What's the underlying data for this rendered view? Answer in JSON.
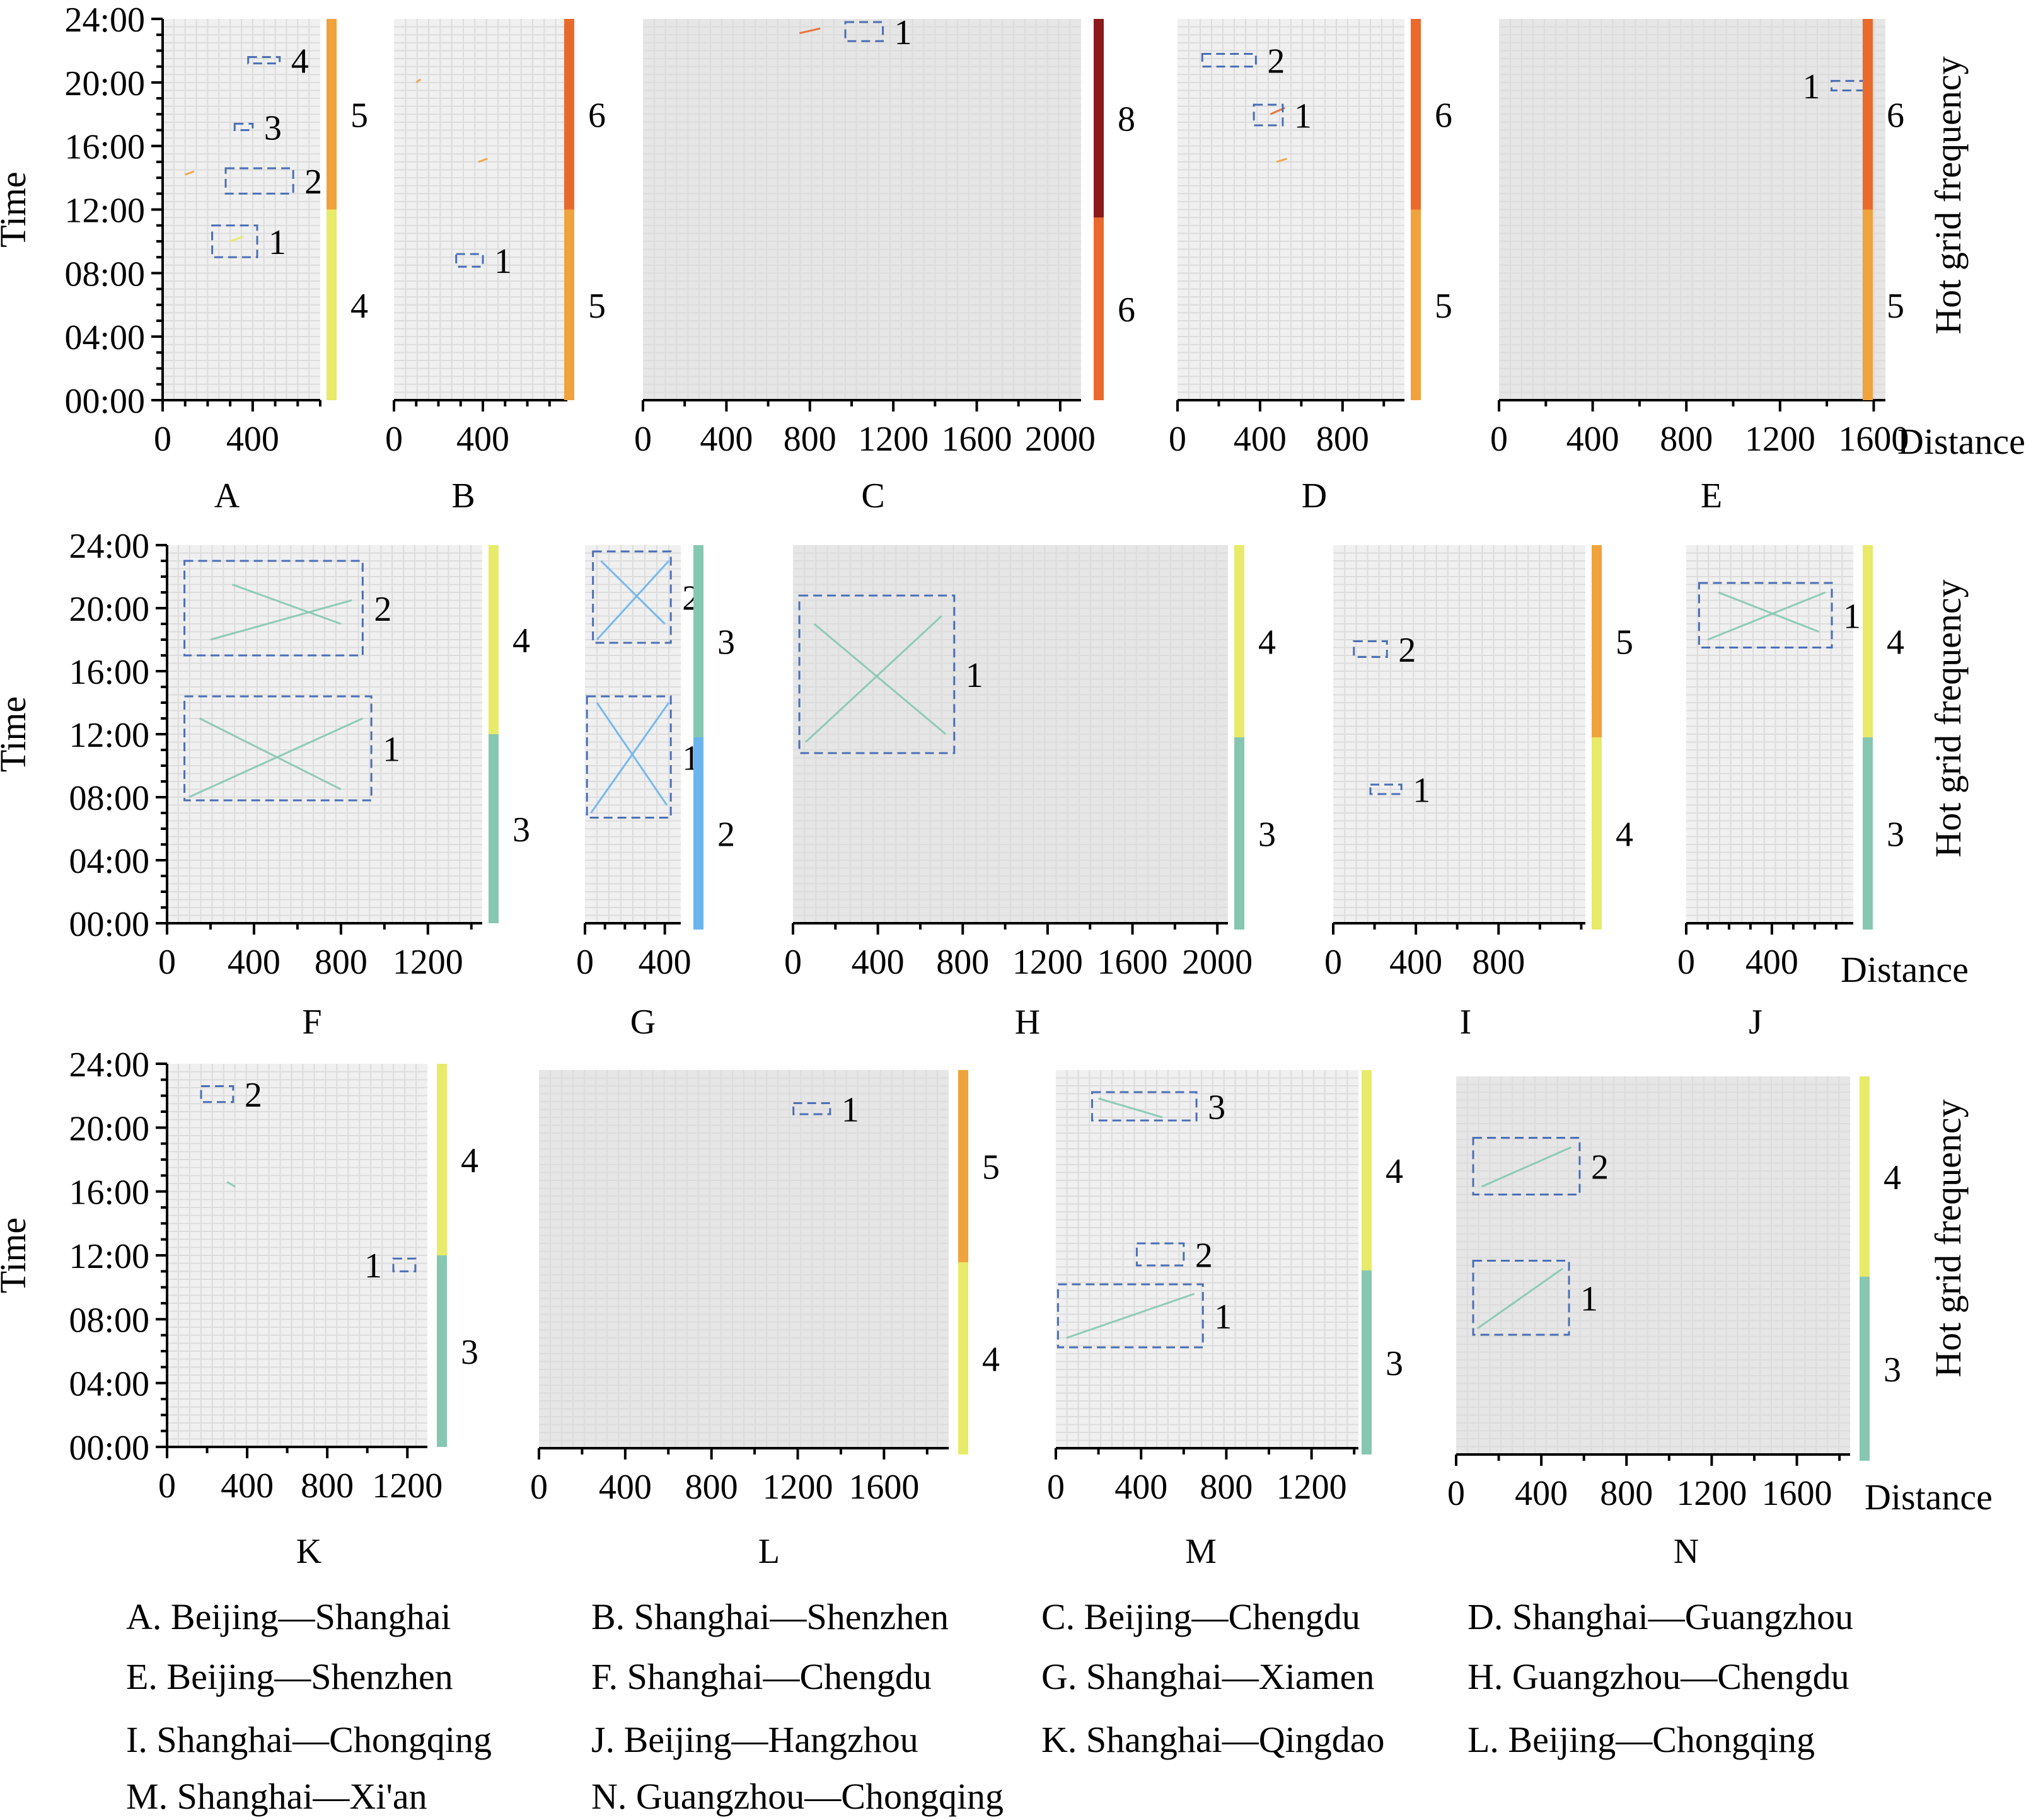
{
  "chart_data": {
    "type": "scatter",
    "axis_labels": {
      "y": "Time",
      "x": "Distance",
      "colorbar": "Hot grid frequency"
    },
    "time_ticks": [
      "00:00",
      "04:00",
      "08:00",
      "12:00",
      "16:00",
      "20:00",
      "24:00"
    ],
    "colors": {
      "freq2": "#6cb4ee",
      "freq3": "#86c7b2",
      "freq4": "#e8ea6a",
      "freq5": "#f0a23c",
      "freq6": "#e96a2c",
      "freq8": "#8b1a1a",
      "box": "#4b6fb5"
    },
    "panels": [
      {
        "id": "A",
        "route": "A. Beijing—Shanghai",
        "xlim": [
          0,
          700
        ],
        "xticks": [
          0,
          400
        ],
        "minor": 100,
        "colorbar": [
          {
            "level": "4",
            "from": 0,
            "to": 12
          },
          {
            "level": "5",
            "from": 12,
            "to": 24
          }
        ],
        "boxes": [
          {
            "label": "1",
            "t0": 9,
            "t1": 11,
            "d0": 220,
            "d1": 420
          },
          {
            "label": "2",
            "t0": 13,
            "t1": 14.6,
            "d0": 280,
            "d1": 580
          },
          {
            "label": "3",
            "t0": 17,
            "t1": 17.4,
            "d0": 320,
            "d1": 400
          },
          {
            "label": "4",
            "t0": 21.2,
            "t1": 21.6,
            "d0": 380,
            "d1": 520
          }
        ],
        "tracks": [
          {
            "t0": 14.2,
            "t1": 14.4,
            "d0": 100,
            "d1": 140,
            "level": "5"
          },
          {
            "t0": 10,
            "t1": 10.3,
            "d0": 300,
            "d1": 360,
            "level": "4"
          }
        ]
      },
      {
        "id": "B",
        "route": "B. Shanghai—Shenzhen",
        "xlim": [
          0,
          780
        ],
        "xticks": [
          0,
          400
        ],
        "minor": 100,
        "colorbar": [
          {
            "level": "5",
            "from": 0,
            "to": 12
          },
          {
            "level": "6",
            "from": 12,
            "to": 24
          }
        ],
        "boxes": [
          {
            "label": "1",
            "t0": 8.4,
            "t1": 9.2,
            "d0": 280,
            "d1": 400
          }
        ],
        "tracks": [
          {
            "t0": 15,
            "t1": 15.2,
            "d0": 380,
            "d1": 420,
            "level": "5"
          },
          {
            "t0": 20,
            "t1": 20.2,
            "d0": 100,
            "d1": 120,
            "level": "5"
          }
        ]
      },
      {
        "id": "C",
        "route": "C. Beijing—Chengdu",
        "xlim": [
          0,
          2100
        ],
        "xticks": [
          0,
          400,
          800,
          1200,
          1600,
          2000
        ],
        "minor": 200,
        "colorbar": [
          {
            "level": "6",
            "from": 0,
            "to": 11.5
          },
          {
            "level": "8",
            "from": 11.5,
            "to": 24
          }
        ],
        "boxes": [
          {
            "label": "1",
            "t0": 22.6,
            "t1": 23.8,
            "d0": 970,
            "d1": 1150
          }
        ],
        "tracks": [
          {
            "t0": 23.1,
            "t1": 23.4,
            "d0": 750,
            "d1": 850,
            "level": "6"
          }
        ]
      },
      {
        "id": "D",
        "route": "D. Shanghai—Guangzhou",
        "xlim": [
          0,
          1100
        ],
        "xticks": [
          0,
          400,
          800
        ],
        "minor": 200,
        "colorbar": [
          {
            "level": "5",
            "from": 0,
            "to": 12
          },
          {
            "level": "6",
            "from": 12,
            "to": 24
          }
        ],
        "boxes": [
          {
            "label": "2",
            "t0": 21,
            "t1": 21.8,
            "d0": 120,
            "d1": 380
          },
          {
            "label": "1",
            "t0": 17.3,
            "t1": 18.6,
            "d0": 370,
            "d1": 510
          }
        ],
        "tracks": [
          {
            "t0": 18,
            "t1": 18.4,
            "d0": 450,
            "d1": 520,
            "level": "6"
          },
          {
            "t0": 15,
            "t1": 15.2,
            "d0": 480,
            "d1": 530,
            "level": "5"
          }
        ]
      },
      {
        "id": "E",
        "route": "E. Beijing—Shenzhen",
        "xlim": [
          0,
          1650
        ],
        "xticks": [
          0,
          400,
          800,
          1200,
          1600
        ],
        "minor": 200,
        "colorbar": [
          {
            "level": "5",
            "from": 0,
            "to": 12
          },
          {
            "level": "6",
            "from": 12,
            "to": 24
          }
        ],
        "boxes": [
          {
            "label": "1",
            "t0": 19.5,
            "t1": 20.1,
            "d0": 1420,
            "d1": 1560
          }
        ],
        "tracks": []
      },
      {
        "id": "F",
        "route": "F. Shanghai—Chengdu",
        "xlim": [
          0,
          1450
        ],
        "xticks": [
          0,
          400,
          800,
          1200
        ],
        "minor": 200,
        "colorbar": [
          {
            "level": "3",
            "from": 0,
            "to": 12
          },
          {
            "level": "4",
            "from": 12,
            "to": 24
          }
        ],
        "boxes": [
          {
            "label": "1",
            "t0": 7.8,
            "t1": 14.4,
            "d0": 80,
            "d1": 940
          },
          {
            "label": "2",
            "t0": 17,
            "t1": 23,
            "d0": 80,
            "d1": 900
          }
        ],
        "tracks": [
          {
            "t0": 8,
            "t1": 13,
            "d0": 100,
            "d1": 900,
            "level": "3"
          },
          {
            "t0": 13,
            "t1": 8.5,
            "d0": 150,
            "d1": 800,
            "level": "3"
          },
          {
            "t0": 18,
            "t1": 20.5,
            "d0": 200,
            "d1": 850,
            "level": "3"
          },
          {
            "t0": 21.5,
            "t1": 19,
            "d0": 300,
            "d1": 800,
            "level": "3"
          }
        ]
      },
      {
        "id": "G",
        "route": "G. Shanghai—Xiamen",
        "xlim": [
          0,
          480
        ],
        "xticks": [
          0,
          400
        ],
        "minor": 100,
        "colorbar": [
          {
            "level": "2",
            "from": 0,
            "to": 12
          },
          {
            "level": "3",
            "from": 12,
            "to": 24
          }
        ],
        "boxes": [
          {
            "label": "1",
            "t0": 6.7,
            "t1": 14.4,
            "d0": 10,
            "d1": 430
          },
          {
            "label": "2",
            "t0": 17.8,
            "t1": 23.6,
            "d0": 40,
            "d1": 430
          }
        ],
        "tracks": [
          {
            "t0": 7,
            "t1": 14,
            "d0": 30,
            "d1": 420,
            "level": "2"
          },
          {
            "t0": 14,
            "t1": 7.5,
            "d0": 60,
            "d1": 410,
            "level": "2"
          },
          {
            "t0": 18,
            "t1": 23,
            "d0": 60,
            "d1": 420,
            "level": "2"
          },
          {
            "t0": 23,
            "t1": 19,
            "d0": 80,
            "d1": 400,
            "level": "2"
          }
        ]
      },
      {
        "id": "H",
        "route": "H. Guangzhou—Chengdu",
        "xlim": [
          0,
          2050
        ],
        "xticks": [
          0,
          400,
          800,
          1200,
          1600,
          2000
        ],
        "minor": 200,
        "colorbar": [
          {
            "level": "3",
            "from": 0,
            "to": 12
          },
          {
            "level": "4",
            "from": 12,
            "to": 24
          }
        ],
        "boxes": [
          {
            "label": "1",
            "t0": 10.8,
            "t1": 20.8,
            "d0": 30,
            "d1": 760
          }
        ],
        "tracks": [
          {
            "t0": 11.5,
            "t1": 19.5,
            "d0": 60,
            "d1": 700,
            "level": "3"
          },
          {
            "t0": 19,
            "t1": 12,
            "d0": 100,
            "d1": 720,
            "level": "3"
          }
        ]
      },
      {
        "id": "I",
        "route": "I. Shanghai—Chongqing",
        "xlim": [
          0,
          1220
        ],
        "xticks": [
          0,
          400,
          800
        ],
        "minor": 200,
        "colorbar": [
          {
            "level": "4",
            "from": 0,
            "to": 12
          },
          {
            "level": "5",
            "from": 12,
            "to": 24
          }
        ],
        "boxes": [
          {
            "label": "2",
            "t0": 16.9,
            "t1": 17.9,
            "d0": 100,
            "d1": 260
          },
          {
            "label": "1",
            "t0": 8.2,
            "t1": 8.8,
            "d0": 180,
            "d1": 330
          }
        ],
        "tracks": []
      },
      {
        "id": "J",
        "route": "J. Beijing—Hangzhou",
        "xlim": [
          0,
          780
        ],
        "xticks": [
          0,
          400
        ],
        "minor": 100,
        "colorbar": [
          {
            "level": "3",
            "from": 0,
            "to": 12
          },
          {
            "level": "4",
            "from": 12,
            "to": 24
          }
        ],
        "boxes": [
          {
            "label": "1",
            "t0": 17.5,
            "t1": 21.6,
            "d0": 60,
            "d1": 680
          }
        ],
        "tracks": [
          {
            "t0": 18,
            "t1": 21,
            "d0": 100,
            "d1": 650,
            "level": "3"
          },
          {
            "t0": 21,
            "t1": 18.5,
            "d0": 150,
            "d1": 620,
            "level": "3"
          }
        ]
      },
      {
        "id": "K",
        "route": "K. Shanghai—Qingdao",
        "xlim": [
          0,
          1300
        ],
        "xticks": [
          0,
          400,
          800,
          1200
        ],
        "minor": 200,
        "colorbar": [
          {
            "level": "3",
            "from": 0,
            "to": 12
          },
          {
            "level": "4",
            "from": 12,
            "to": 24
          }
        ],
        "boxes": [
          {
            "label": "2",
            "t0": 21.6,
            "t1": 22.6,
            "d0": 170,
            "d1": 330
          },
          {
            "label": "1",
            "t0": 11,
            "t1": 11.8,
            "d0": 1130,
            "d1": 1240
          }
        ],
        "tracks": [
          {
            "t0": 16.6,
            "t1": 16.3,
            "d0": 300,
            "d1": 340,
            "level": "3"
          }
        ]
      },
      {
        "id": "L",
        "route": "L. Beijing—Chongqing",
        "xlim": [
          0,
          1900
        ],
        "xticks": [
          0,
          400,
          800,
          1200,
          1600
        ],
        "minor": 200,
        "colorbar": [
          {
            "level": "4",
            "from": 0,
            "to": 12
          },
          {
            "level": "5",
            "from": 12,
            "to": 24
          }
        ],
        "boxes": [
          {
            "label": "1",
            "t0": 21.2,
            "t1": 21.9,
            "d0": 1180,
            "d1": 1350
          }
        ],
        "tracks": []
      },
      {
        "id": "M",
        "route": "M. Shanghai—Xi'an",
        "xlim": [
          0,
          1420
        ],
        "xticks": [
          0,
          400,
          800,
          1200
        ],
        "minor": 200,
        "colorbar": [
          {
            "level": "3",
            "from": 0,
            "to": 11.5
          },
          {
            "level": "4",
            "from": 11.5,
            "to": 24
          }
        ],
        "boxes": [
          {
            "label": "1",
            "t0": 6.4,
            "t1": 10.4,
            "d0": 10,
            "d1": 690
          },
          {
            "label": "2",
            "t0": 11.6,
            "t1": 13,
            "d0": 380,
            "d1": 600
          },
          {
            "label": "3",
            "t0": 20.8,
            "t1": 22.6,
            "d0": 170,
            "d1": 660
          }
        ],
        "tracks": [
          {
            "t0": 7,
            "t1": 9.8,
            "d0": 50,
            "d1": 650,
            "level": "3"
          },
          {
            "t0": 22.2,
            "t1": 21,
            "d0": 200,
            "d1": 500,
            "level": "3"
          }
        ]
      },
      {
        "id": "N",
        "route": "N. Guangzhou—Chongqing",
        "xlim": [
          0,
          1850
        ],
        "xticks": [
          0,
          400,
          800,
          1200,
          1600
        ],
        "minor": 200,
        "colorbar": [
          {
            "level": "3",
            "from": 0,
            "to": 11.5
          },
          {
            "level": "4",
            "from": 11.5,
            "to": 24
          }
        ],
        "boxes": [
          {
            "label": "1",
            "t0": 7.6,
            "t1": 12.3,
            "d0": 80,
            "d1": 530
          },
          {
            "label": "2",
            "t0": 16.5,
            "t1": 20.1,
            "d0": 80,
            "d1": 580
          }
        ],
        "tracks": [
          {
            "t0": 8,
            "t1": 11.8,
            "d0": 100,
            "d1": 500,
            "level": "3"
          },
          {
            "t0": 17,
            "t1": 19.5,
            "d0": 120,
            "d1": 540,
            "level": "3"
          }
        ]
      }
    ]
  }
}
